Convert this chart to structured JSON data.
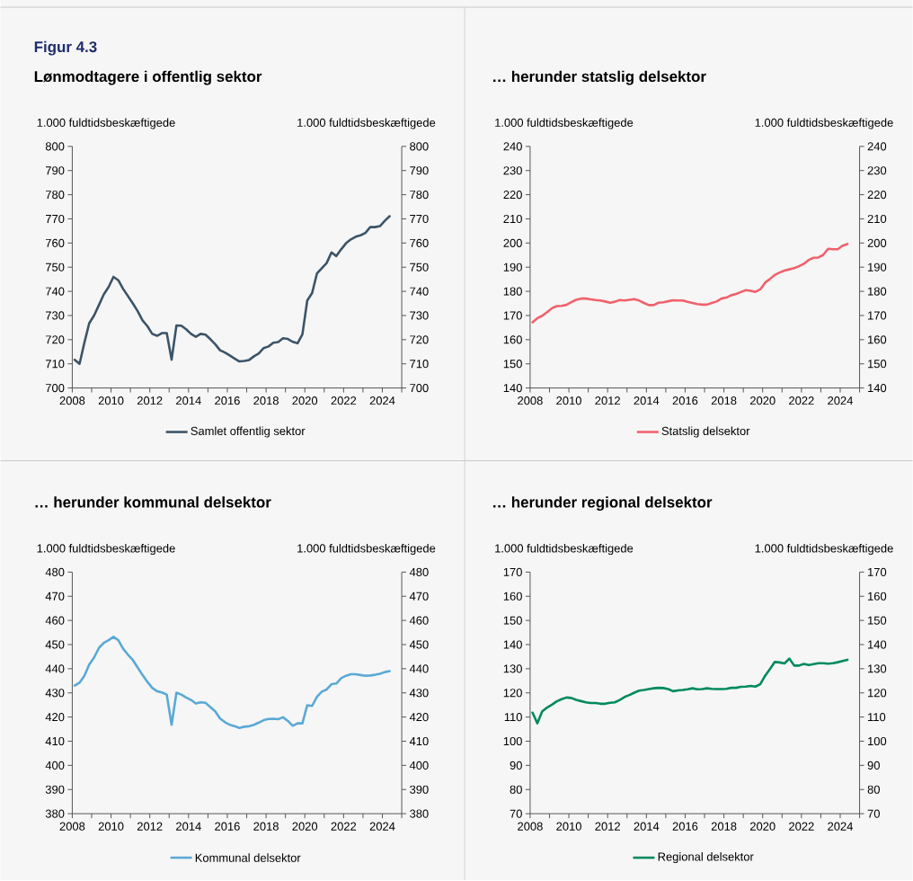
{
  "chart_data": [
    {
      "type": "line",
      "title": "Lønmodtagere i offentlig sektor",
      "annotations": [
        "Figur 4.3"
      ],
      "ylabel": "1.000 fuldtidsbeskæftigede",
      "y2label": "1.000 fuldtidsbeskæftigede",
      "x": [
        2008.125,
        2008.375,
        2008.625,
        2008.875,
        2009.125,
        2009.375,
        2009.625,
        2009.875,
        2010.125,
        2010.375,
        2010.625,
        2010.875,
        2011.125,
        2011.375,
        2011.625,
        2011.875,
        2012.125,
        2012.375,
        2012.625,
        2012.875,
        2013.125,
        2013.375,
        2013.625,
        2013.875,
        2014.125,
        2014.375,
        2014.625,
        2014.875,
        2015.125,
        2015.375,
        2015.625,
        2015.875,
        2016.125,
        2016.375,
        2016.625,
        2016.875,
        2017.125,
        2017.375,
        2017.625,
        2017.875,
        2018.125,
        2018.375,
        2018.625,
        2018.875,
        2019.125,
        2019.375,
        2019.625,
        2019.875,
        2020.125,
        2020.375,
        2020.625,
        2020.875,
        2021.125,
        2021.375,
        2021.625,
        2021.875,
        2022.125,
        2022.375,
        2022.625,
        2022.875,
        2023.125,
        2023.375,
        2023.625,
        2023.875,
        2024.125,
        2024.375
      ],
      "series": [
        {
          "name": "Samlet offentlig sektor",
          "color": "#3c5468",
          "values": [
            711.7,
            710,
            718.7,
            726.8,
            730,
            734.3,
            738.7,
            741.8,
            746,
            744.6,
            741,
            738,
            735,
            731.8,
            728,
            725.6,
            722.4,
            721.6,
            722.7,
            722.7,
            711.7,
            725.9,
            725.8,
            724.3,
            722.4,
            721.2,
            722.4,
            722.1,
            720.2,
            718.1,
            715.6,
            714.7,
            713.5,
            712.2,
            711,
            711.2,
            711.6,
            713.1,
            714.3,
            716.5,
            717.2,
            718.7,
            719,
            720.6,
            720.3,
            719.1,
            718.5,
            722.2,
            736.2,
            739.3,
            747.4,
            749.6,
            751.7,
            756.1,
            754.6,
            757.4,
            759.9,
            761.5,
            762.6,
            763.2,
            764.2,
            766.6,
            766.6,
            767,
            769.2,
            771.1
          ]
        }
      ],
      "xlim": [
        2008,
        2025
      ],
      "xticks": [
        2008,
        {
          "value": 2009,
          "label": null
        },
        2010,
        {
          "value": 2011,
          "label": null
        },
        2012,
        {
          "value": 2013,
          "label": null
        },
        2014,
        {
          "value": 2015,
          "label": null
        },
        2016,
        {
          "value": 2017,
          "label": null
        },
        2018,
        {
          "value": 2019,
          "label": null
        },
        2020,
        {
          "value": 2021,
          "label": null
        },
        2022,
        {
          "value": 2023,
          "label": null
        },
        2024,
        {
          "value": 2025,
          "label": null
        }
      ],
      "ylim": [
        700,
        800
      ],
      "yticks": [
        700,
        710,
        720,
        730,
        740,
        750,
        760,
        770,
        780,
        790,
        800
      ],
      "y2lim": [
        700,
        800
      ],
      "y2ticks": [
        700,
        710,
        720,
        730,
        740,
        750,
        760,
        770,
        780,
        790,
        800
      ],
      "legend": "bottom"
    },
    {
      "type": "line",
      "title": "… herunder statslig delsektor",
      "ylabel": "1.000 fuldtidsbeskæftigede",
      "y2label": "1.000 fuldtidsbeskæftigede",
      "x": [
        2008.125,
        2008.375,
        2008.625,
        2008.875,
        2009.125,
        2009.375,
        2009.625,
        2009.875,
        2010.125,
        2010.375,
        2010.625,
        2010.875,
        2011.125,
        2011.375,
        2011.625,
        2011.875,
        2012.125,
        2012.375,
        2012.625,
        2012.875,
        2013.125,
        2013.375,
        2013.625,
        2013.875,
        2014.125,
        2014.375,
        2014.625,
        2014.875,
        2015.125,
        2015.375,
        2015.625,
        2015.875,
        2016.125,
        2016.375,
        2016.625,
        2016.875,
        2017.125,
        2017.375,
        2017.625,
        2017.875,
        2018.125,
        2018.375,
        2018.625,
        2018.875,
        2019.125,
        2019.375,
        2019.625,
        2019.875,
        2020.125,
        2020.375,
        2020.625,
        2020.875,
        2021.125,
        2021.375,
        2021.625,
        2021.875,
        2022.125,
        2022.375,
        2022.625,
        2022.875,
        2023.125,
        2023.375,
        2023.625,
        2023.875,
        2024.125,
        2024.375
      ],
      "series": [
        {
          "name": "Statslig delsektor",
          "color": "#f0616b",
          "values": [
            167.2,
            168.9,
            169.9,
            171.4,
            173,
            173.9,
            174,
            174.4,
            175.5,
            176.5,
            177,
            177,
            176.7,
            176.4,
            176.2,
            175.8,
            175.3,
            175.7,
            176.4,
            176.2,
            176.5,
            176.8,
            176.2,
            175.2,
            174.3,
            174.3,
            175.3,
            175.5,
            175.9,
            176.3,
            176.2,
            176.2,
            175.7,
            175.2,
            174.7,
            174.5,
            174.5,
            175.2,
            175.8,
            177,
            177.4,
            178.4,
            178.9,
            179.7,
            180.5,
            180.2,
            179.8,
            180.8,
            183.6,
            185.1,
            186.8,
            187.8,
            188.6,
            189.1,
            189.6,
            190.4,
            191.4,
            193,
            193.9,
            194,
            195.1,
            197.6,
            197.4,
            197.4,
            198.9,
            199.6
          ]
        }
      ],
      "xlim": [
        2008,
        2025
      ],
      "xticks": [
        2008,
        {
          "value": 2009,
          "label": null
        },
        2010,
        {
          "value": 2011,
          "label": null
        },
        2012,
        {
          "value": 2013,
          "label": null
        },
        2014,
        {
          "value": 2015,
          "label": null
        },
        2016,
        {
          "value": 2017,
          "label": null
        },
        2018,
        {
          "value": 2019,
          "label": null
        },
        2020,
        {
          "value": 2021,
          "label": null
        },
        2022,
        {
          "value": 2023,
          "label": null
        },
        2024,
        {
          "value": 2025,
          "label": null
        }
      ],
      "ylim": [
        140,
        240
      ],
      "yticks": [
        140,
        150,
        160,
        170,
        180,
        190,
        200,
        210,
        220,
        230,
        240
      ],
      "y2lim": [
        140,
        240
      ],
      "y2ticks": [
        140,
        150,
        160,
        170,
        180,
        190,
        200,
        210,
        220,
        230,
        240
      ],
      "legend": "bottom"
    },
    {
      "type": "line",
      "title": "… herunder kommunal delsektor",
      "ylabel": "1.000 fuldtidsbeskæftigede",
      "y2label": "1.000 fuldtidsbeskæftigede",
      "x": [
        2008.125,
        2008.375,
        2008.625,
        2008.875,
        2009.125,
        2009.375,
        2009.625,
        2009.875,
        2010.125,
        2010.375,
        2010.625,
        2010.875,
        2011.125,
        2011.375,
        2011.625,
        2011.875,
        2012.125,
        2012.375,
        2012.625,
        2012.875,
        2013.125,
        2013.375,
        2013.625,
        2013.875,
        2014.125,
        2014.375,
        2014.625,
        2014.875,
        2015.125,
        2015.375,
        2015.625,
        2015.875,
        2016.125,
        2016.375,
        2016.625,
        2016.875,
        2017.125,
        2017.375,
        2017.625,
        2017.875,
        2018.125,
        2018.375,
        2018.625,
        2018.875,
        2019.125,
        2019.375,
        2019.625,
        2019.875,
        2020.125,
        2020.375,
        2020.625,
        2020.875,
        2021.125,
        2021.375,
        2021.625,
        2021.875,
        2022.125,
        2022.375,
        2022.625,
        2022.875,
        2023.125,
        2023.375,
        2023.625,
        2023.875,
        2024.125,
        2024.375
      ],
      "series": [
        {
          "name": "Kommunal delsektor",
          "color": "#5ba9d5",
          "values": [
            433,
            434.2,
            437.1,
            441.7,
            444.6,
            448.6,
            450.7,
            451.8,
            453.2,
            451.8,
            448.3,
            445.8,
            443.6,
            440.5,
            437.4,
            434.6,
            432.1,
            430.7,
            430.2,
            429.3,
            416.8,
            430.1,
            429.3,
            428.1,
            427.1,
            425.6,
            426.1,
            425.9,
            424.1,
            422.4,
            419.4,
            417.9,
            416.8,
            416.2,
            415.5,
            416,
            416.2,
            416.8,
            417.7,
            418.7,
            419.2,
            419.3,
            419.1,
            419.9,
            418.4,
            416.4,
            417.4,
            417.4,
            424.9,
            424.6,
            428.4,
            430.5,
            431.4,
            433.6,
            433.9,
            436.1,
            437.1,
            437.7,
            437.7,
            437.4,
            437.1,
            437.2,
            437.5,
            437.9,
            438.6,
            439
          ]
        }
      ],
      "xlim": [
        2008,
        2025
      ],
      "xticks": [
        2008,
        {
          "value": 2009,
          "label": null
        },
        2010,
        {
          "value": 2011,
          "label": null
        },
        2012,
        {
          "value": 2013,
          "label": null
        },
        2014,
        {
          "value": 2015,
          "label": null
        },
        2016,
        {
          "value": 2017,
          "label": null
        },
        2018,
        {
          "value": 2019,
          "label": null
        },
        2020,
        {
          "value": 2021,
          "label": null
        },
        2022,
        {
          "value": 2023,
          "label": null
        },
        2024,
        {
          "value": 2025,
          "label": null
        }
      ],
      "ylim": [
        380,
        480
      ],
      "yticks": [
        380,
        390,
        400,
        410,
        420,
        430,
        440,
        450,
        460,
        470,
        480
      ],
      "y2lim": [
        380,
        480
      ],
      "y2ticks": [
        380,
        390,
        400,
        410,
        420,
        430,
        440,
        450,
        460,
        470,
        480
      ],
      "legend": "bottom"
    },
    {
      "type": "line",
      "title": "… herunder regional delsektor",
      "ylabel": "1.000 fuldtidsbeskæftigede",
      "y2label": "1.000 fuldtidsbeskæftigede",
      "x": [
        2008.125,
        2008.375,
        2008.625,
        2008.875,
        2009.125,
        2009.375,
        2009.625,
        2009.875,
        2010.125,
        2010.375,
        2010.625,
        2010.875,
        2011.125,
        2011.375,
        2011.625,
        2011.875,
        2012.125,
        2012.375,
        2012.625,
        2012.875,
        2013.125,
        2013.375,
        2013.625,
        2013.875,
        2014.125,
        2014.375,
        2014.625,
        2014.875,
        2015.125,
        2015.375,
        2015.625,
        2015.875,
        2016.125,
        2016.375,
        2016.625,
        2016.875,
        2017.125,
        2017.375,
        2017.625,
        2017.875,
        2018.125,
        2018.375,
        2018.625,
        2018.875,
        2019.125,
        2019.375,
        2019.625,
        2019.875,
        2020.125,
        2020.375,
        2020.625,
        2020.875,
        2021.125,
        2021.375,
        2021.625,
        2021.875,
        2022.125,
        2022.375,
        2022.625,
        2022.875,
        2023.125,
        2023.375,
        2023.625,
        2023.875,
        2024.125,
        2024.375
      ],
      "series": [
        {
          "name": "Regional delsektor",
          "color": "#008a5e",
          "values": [
            111.8,
            107.4,
            112.4,
            113.9,
            115.1,
            116.5,
            117.4,
            118.1,
            117.9,
            117.1,
            116.6,
            116.1,
            115.8,
            115.8,
            115.5,
            115.5,
            115.9,
            116.1,
            117.1,
            118.3,
            119.1,
            120.1,
            120.9,
            121.2,
            121.6,
            121.9,
            122.1,
            122,
            121.6,
            120.7,
            121,
            121.2,
            121.5,
            121.9,
            121.5,
            121.6,
            121.9,
            121.7,
            121.6,
            121.6,
            121.7,
            122.1,
            122.1,
            122.5,
            122.6,
            122.9,
            122.6,
            123.6,
            127.1,
            129.9,
            132.8,
            132.6,
            132.2,
            134.2,
            131.3,
            131.3,
            132,
            131.5,
            131.9,
            132.3,
            132.3,
            132.1,
            132.3,
            132.7,
            133.2,
            133.7
          ]
        }
      ],
      "xlim": [
        2008,
        2025
      ],
      "xticks": [
        2008,
        {
          "value": 2009,
          "label": null
        },
        2010,
        {
          "value": 2011,
          "label": null
        },
        2012,
        {
          "value": 2013,
          "label": null
        },
        2014,
        {
          "value": 2015,
          "label": null
        },
        2016,
        {
          "value": 2017,
          "label": null
        },
        2018,
        {
          "value": 2019,
          "label": null
        },
        2020,
        {
          "value": 2021,
          "label": null
        },
        2022,
        {
          "value": 2023,
          "label": null
        },
        2024,
        {
          "value": 2025,
          "label": null
        }
      ],
      "ylim": [
        70,
        170
      ],
      "yticks": [
        70,
        80,
        90,
        100,
        110,
        120,
        130,
        140,
        150,
        160,
        170
      ],
      "y2lim": [
        70,
        170
      ],
      "y2ticks": [
        70,
        80,
        90,
        100,
        110,
        120,
        130,
        140,
        150,
        160,
        170
      ],
      "legend": "bottom"
    }
  ]
}
